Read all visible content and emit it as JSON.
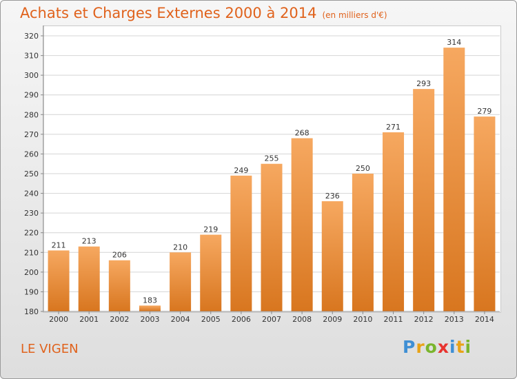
{
  "header": {
    "title": "Achats et Charges Externes 2000 à 2014",
    "subtitle": "(en milliers d'€)"
  },
  "footer": {
    "place": "LE VIGEN",
    "logo_text": [
      "P",
      "r",
      "o",
      "x",
      "i",
      "t",
      "i"
    ]
  },
  "colors": {
    "bar_top": "#f6a860",
    "bar_bottom": "#d8761f",
    "title": "#e0621c",
    "grid": "#d4d4d4"
  },
  "chart_data": {
    "type": "bar",
    "categories": [
      "2000",
      "2001",
      "2002",
      "2003",
      "2004",
      "2005",
      "2006",
      "2007",
      "2008",
      "2009",
      "2010",
      "2011",
      "2012",
      "2013",
      "2014"
    ],
    "values": [
      211,
      213,
      206,
      183,
      210,
      219,
      249,
      255,
      268,
      236,
      250,
      271,
      293,
      314,
      279
    ],
    "ylim": [
      180,
      320
    ],
    "yticks": [
      180,
      190,
      200,
      210,
      220,
      230,
      240,
      250,
      260,
      270,
      280,
      290,
      300,
      310,
      320
    ],
    "grid": true,
    "data_labels": true
  }
}
